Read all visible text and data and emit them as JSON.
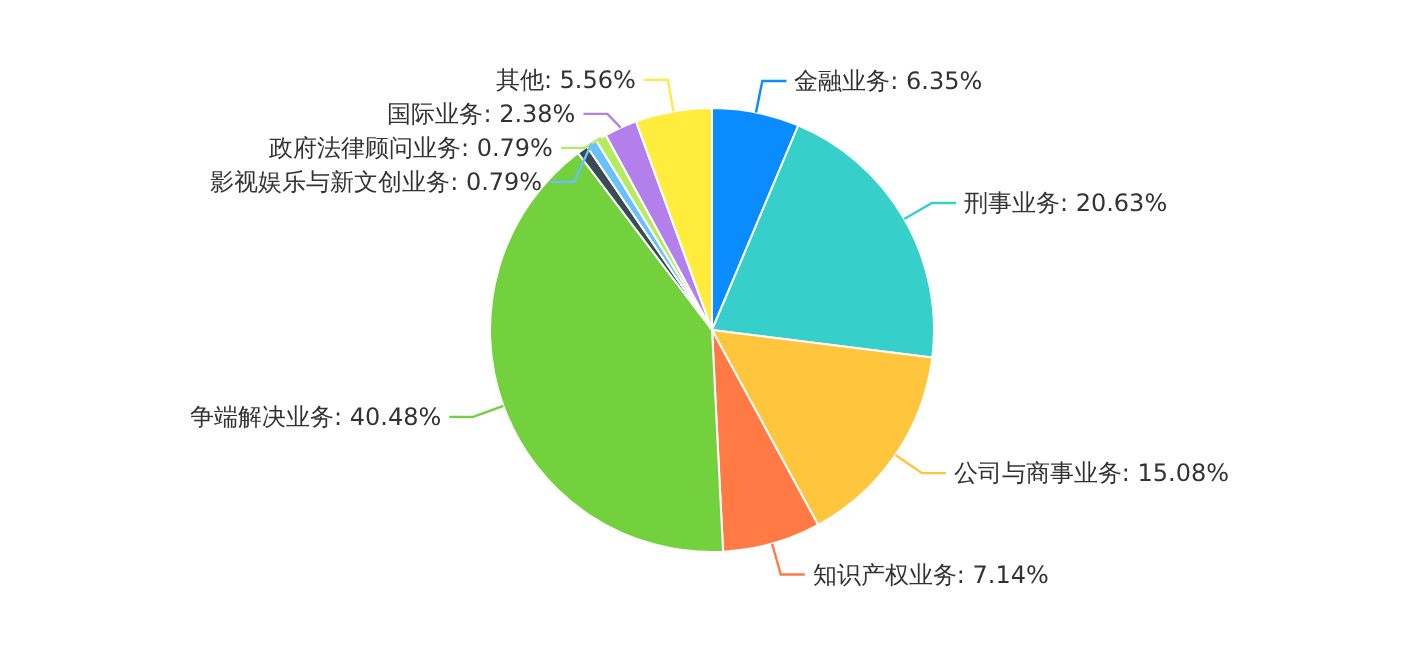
{
  "chart_data": {
    "type": "pie",
    "categories": [
      "金融业务",
      "刑事业务",
      "公司与商事业务",
      "知识产权业务",
      "争端解决业务",
      null,
      "影视娱乐与新文创业务",
      "政府法律顾问业务",
      "国际业务",
      "其他"
    ],
    "values": [
      6.35,
      20.63,
      15.08,
      7.14,
      40.48,
      0.79,
      0.79,
      0.79,
      2.38,
      5.56
    ],
    "colors": [
      "#0a8cff",
      "#36cfc9",
      "#ffc53d",
      "#ff7a45",
      "#73d13d",
      "#3b4a57",
      "#69c0ff",
      "#b7eb5f",
      "#b37feb",
      "#ffec3d"
    ],
    "value_labels": [
      ": 6.35%",
      ": 20.63%",
      ": 15.08%",
      ": 7.14%",
      ": 40.48%",
      null,
      ": 0.79%",
      ": 0.79%",
      ": 2.38%",
      ": 5.56%"
    ]
  }
}
